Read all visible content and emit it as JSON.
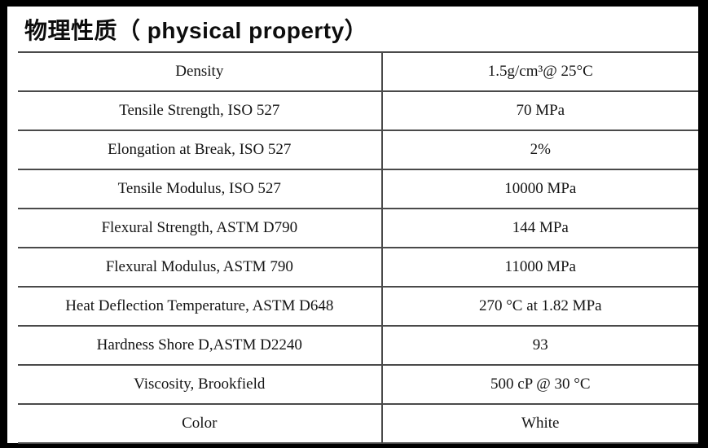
{
  "title": {
    "text": "物理性质（ physical property）"
  },
  "table": {
    "rows": [
      {
        "property": "Density",
        "value": "1.5g/cm³@ 25°C"
      },
      {
        "property": "Tensile Strength, ISO 527",
        "value": "70 MPa"
      },
      {
        "property": "Elongation at Break, ISO 527",
        "value": "2%"
      },
      {
        "property": "Tensile Modulus, ISO 527",
        "value": "10000 MPa"
      },
      {
        "property": "Flexural Strength, ASTM D790",
        "value": "144 MPa"
      },
      {
        "property": "Flexural Modulus, ASTM 790",
        "value": "11000 MPa"
      },
      {
        "property": "Heat Deflection Temperature, ASTM D648",
        "value": "270 °C at 1.82 MPa"
      },
      {
        "property": "Hardness Shore D,ASTM D2240",
        "value": "93"
      },
      {
        "property": "Viscosity, Brookfield",
        "value": "500 cP @ 30 °C"
      },
      {
        "property": "Color",
        "value": "White"
      }
    ]
  },
  "colors": {
    "frame": "#000000",
    "table_line": "#4a4a4a",
    "text": "#141414",
    "background": "#ffffff"
  }
}
